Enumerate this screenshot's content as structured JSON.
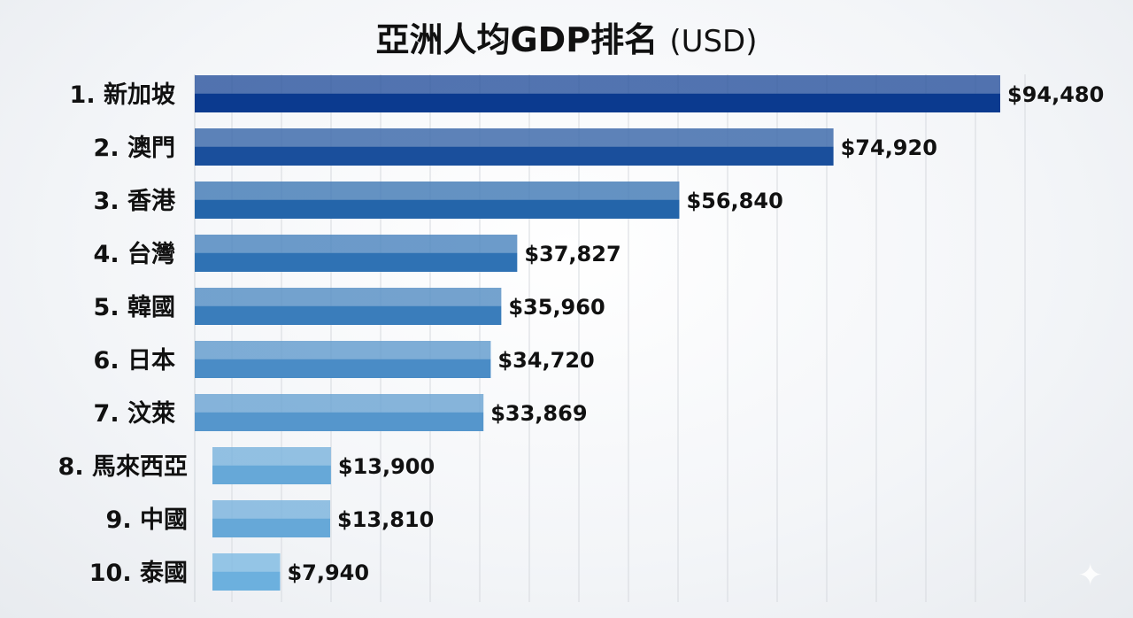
{
  "chart_data": {
    "type": "bar",
    "orientation": "horizontal",
    "title": "亞洲人均GDP排名",
    "title_unit": "(USD)",
    "categories": [
      "1. 新加坡",
      "2. 澳門",
      "3. 香港",
      "4. 台灣",
      "5. 韓國",
      "6. 日本",
      "7. 汶萊",
      "8. 馬來西亞",
      "9. 中國",
      "10. 泰國"
    ],
    "values": [
      94480,
      74920,
      56840,
      37827,
      35960,
      34720,
      33869,
      13900,
      13810,
      7940
    ],
    "value_labels": [
      "$94,480",
      "$74,920",
      "$56,840",
      "$37,827",
      "$35,960",
      "$34,720",
      "$33,869",
      "$13,900",
      "$13,810",
      "$7,940"
    ],
    "colors": [
      "#0b3a8f",
      "#1a4f9c",
      "#2465aa",
      "#2f72b4",
      "#3a7dbb",
      "#4a8cc6",
      "#5596cc",
      "#66a8d8",
      "#66a8d8",
      "#6cb0de"
    ],
    "xlim": [
      0,
      100000
    ],
    "grid": true,
    "legend": "none"
  }
}
